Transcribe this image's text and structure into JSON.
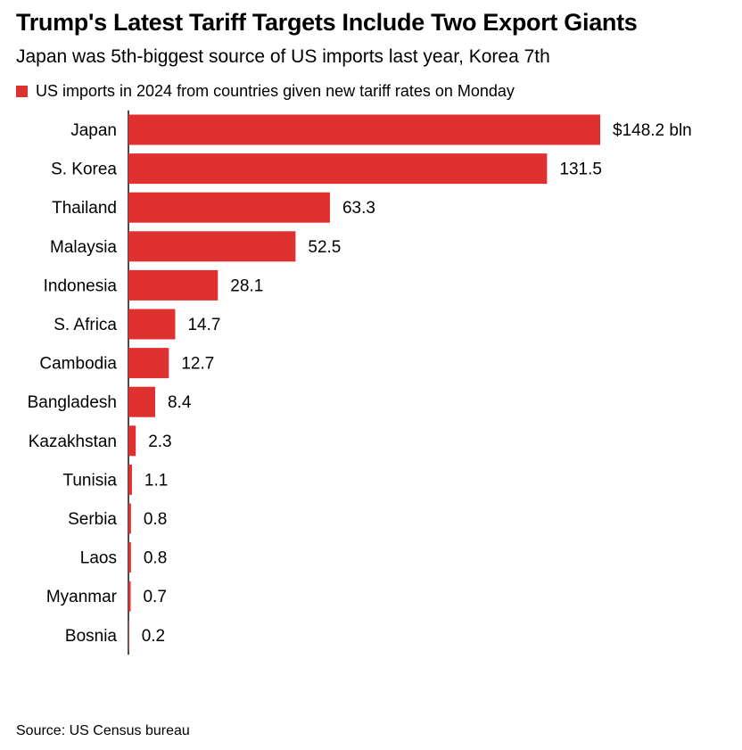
{
  "title": "Trump's Latest Tariff Targets Include Two Export Giants",
  "subtitle": "Japan was 5th-biggest source of US imports last year, Korea 7th",
  "source": "Source: US Census bureau",
  "colors": {
    "bar": "#e03131",
    "axis": "#111111"
  },
  "chart_data": {
    "type": "bar",
    "orientation": "horizontal",
    "legend": "US imports in 2024 from countries given new tariff rates on Monday",
    "legend_position": "top-left",
    "grid": false,
    "categories": [
      "Japan",
      "S. Korea",
      "Thailand",
      "Malaysia",
      "Indonesia",
      "S. Africa",
      "Cambodia",
      "Bangladesh",
      "Kazakhstan",
      "Tunisia",
      "Serbia",
      "Laos",
      "Myanmar",
      "Bosnia"
    ],
    "values": [
      148.2,
      131.5,
      63.3,
      52.5,
      28.1,
      14.7,
      12.7,
      8.4,
      2.3,
      1.1,
      0.8,
      0.8,
      0.7,
      0.2
    ],
    "value_labels": [
      "$148.2 bln",
      "131.5",
      "63.3",
      "52.5",
      "28.1",
      "14.7",
      "12.7",
      "8.4",
      "2.3",
      "1.1",
      "0.8",
      "0.8",
      "0.7",
      "0.2"
    ],
    "xlim": [
      0,
      148.2
    ]
  }
}
